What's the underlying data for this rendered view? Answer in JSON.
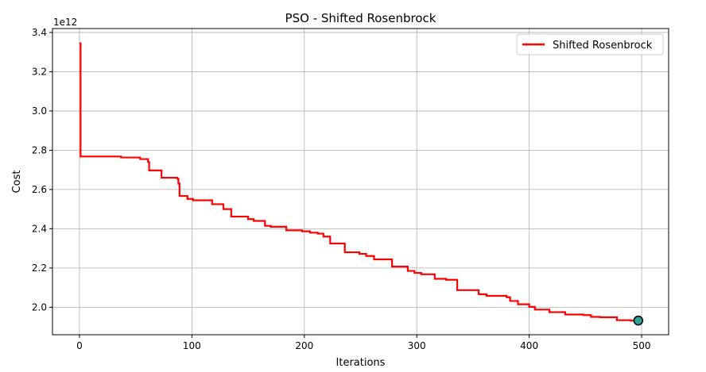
{
  "chart_data": {
    "type": "line",
    "title": "PSO - Shifted Rosenbrock",
    "xlabel": "Iterations",
    "ylabel": "Cost",
    "y_offset_label": "1e12",
    "xlim": [
      -24,
      524
    ],
    "ylim": [
      1.86,
      3.42
    ],
    "x_ticks": [
      0,
      100,
      200,
      300,
      400,
      500
    ],
    "y_ticks": [
      2.0,
      2.2,
      2.4,
      2.6,
      2.8,
      3.0,
      3.2,
      3.4
    ],
    "grid": true,
    "legend_position": "top-right",
    "series": [
      {
        "name": "Shifted Rosenbrock",
        "color": "#ff0000",
        "step": true,
        "points": [
          [
            0,
            3.345
          ],
          [
            1,
            2.768
          ],
          [
            37,
            2.763
          ],
          [
            54,
            2.755
          ],
          [
            61,
            2.74
          ],
          [
            62,
            2.697
          ],
          [
            73,
            2.66
          ],
          [
            87,
            2.655
          ],
          [
            88,
            2.63
          ],
          [
            89,
            2.567
          ],
          [
            96,
            2.552
          ],
          [
            101,
            2.545
          ],
          [
            118,
            2.525
          ],
          [
            128,
            2.5
          ],
          [
            135,
            2.462
          ],
          [
            150,
            2.449
          ],
          [
            155,
            2.44
          ],
          [
            165,
            2.415
          ],
          [
            170,
            2.41
          ],
          [
            184,
            2.392
          ],
          [
            198,
            2.387
          ],
          [
            205,
            2.38
          ],
          [
            212,
            2.375
          ],
          [
            217,
            2.36
          ],
          [
            223,
            2.325
          ],
          [
            236,
            2.28
          ],
          [
            249,
            2.272
          ],
          [
            255,
            2.261
          ],
          [
            262,
            2.244
          ],
          [
            278,
            2.207
          ],
          [
            292,
            2.185
          ],
          [
            298,
            2.175
          ],
          [
            304,
            2.168
          ],
          [
            316,
            2.145
          ],
          [
            326,
            2.14
          ],
          [
            333,
            2.14
          ],
          [
            336,
            2.087
          ],
          [
            355,
            2.066
          ],
          [
            362,
            2.058
          ],
          [
            380,
            2.051
          ],
          [
            383,
            2.032
          ],
          [
            390,
            2.015
          ],
          [
            400,
            2.002
          ],
          [
            405,
            1.988
          ],
          [
            418,
            1.975
          ],
          [
            432,
            1.963
          ],
          [
            448,
            1.96
          ],
          [
            455,
            1.951
          ],
          [
            463,
            1.949
          ],
          [
            478,
            1.934
          ],
          [
            490,
            1.932
          ],
          [
            500,
            1.932
          ]
        ]
      }
    ],
    "final_marker": {
      "x": 497,
      "y": 1.932,
      "fill": "#2aa198",
      "edge": "#000000"
    }
  }
}
